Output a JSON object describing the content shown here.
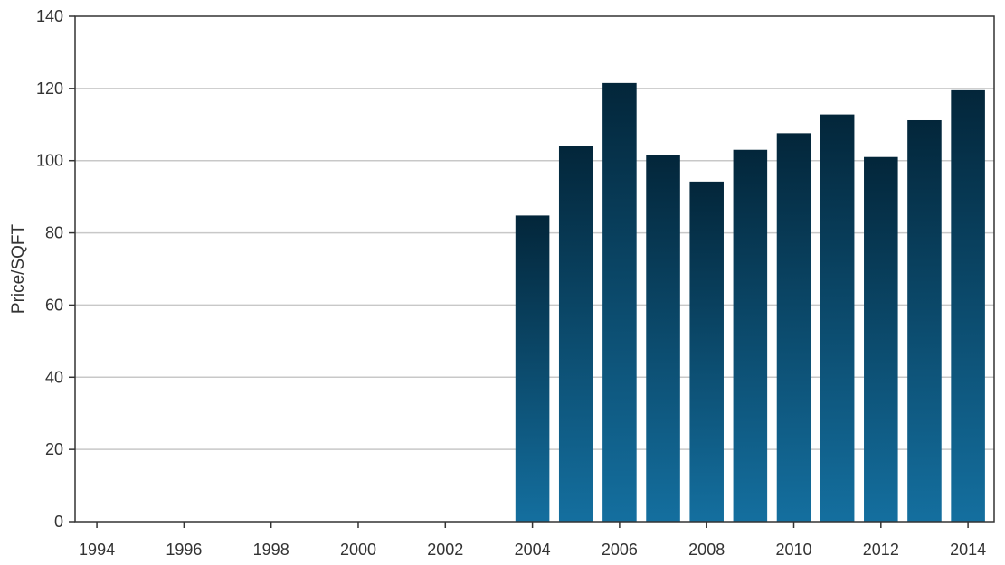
{
  "chart_data": {
    "type": "bar",
    "title": "",
    "xlabel": "",
    "ylabel": "Price/SQFT",
    "x": [
      2004,
      2005,
      2006,
      2007,
      2008,
      2009,
      2010,
      2011,
      2012,
      2013,
      2014
    ],
    "values": [
      84.8,
      104.0,
      121.5,
      101.5,
      94.2,
      103.0,
      107.6,
      112.8,
      101.0,
      111.2,
      119.5
    ],
    "xlim": [
      1993.5,
      2014.6
    ],
    "ylim": [
      0,
      140
    ],
    "xticks": [
      1994,
      1996,
      1998,
      2000,
      2002,
      2004,
      2006,
      2008,
      2010,
      2012,
      2014
    ],
    "xtick_labels": [
      "1994",
      "1996",
      "1998",
      "2000",
      "2002",
      "2004",
      "2006",
      "2008",
      "2010",
      "2012",
      "2014"
    ],
    "yticks": [
      0,
      20,
      40,
      60,
      80,
      100,
      120,
      140
    ],
    "ytick_labels": [
      "0",
      "20",
      "40",
      "60",
      "80",
      "100",
      "120",
      "140"
    ],
    "grid": "horizontal",
    "bar_colors": {
      "top": "#03263a",
      "bottom": "#146f9f"
    },
    "grid_color": "#c8c8c8",
    "axis_color": "#333333"
  }
}
